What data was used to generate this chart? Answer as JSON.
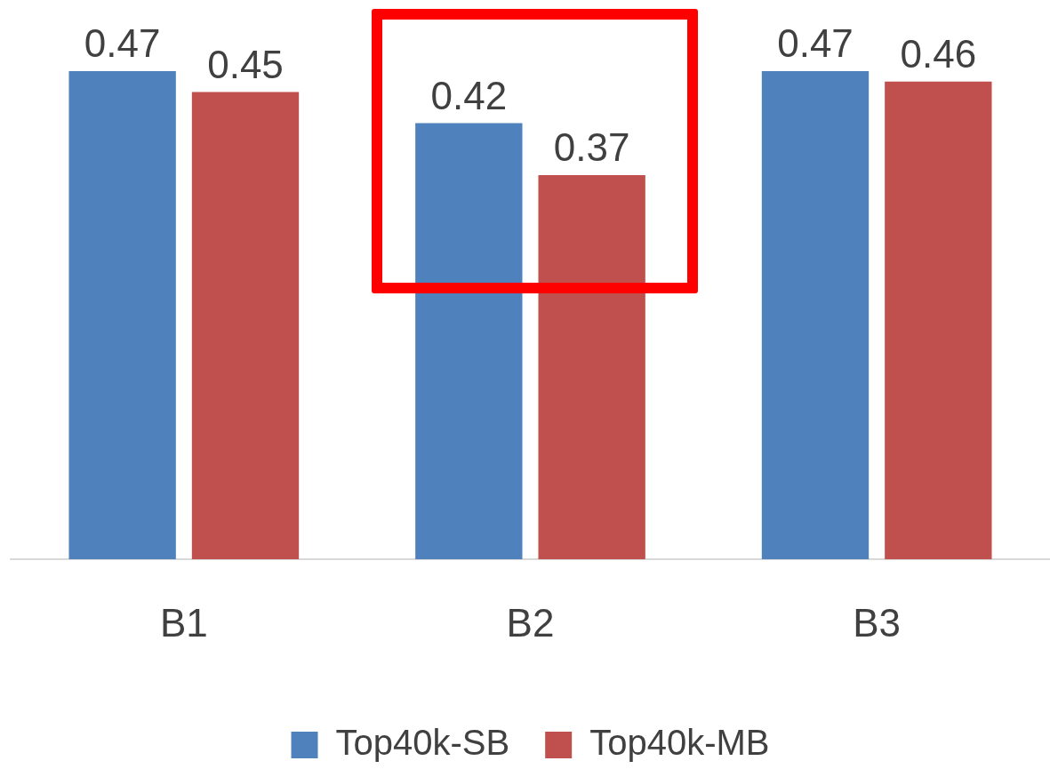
{
  "chart_data": {
    "type": "bar",
    "categories": [
      "B1",
      "B2",
      "B3"
    ],
    "series": [
      {
        "name": "Top40k-SB",
        "color": "#4f81bd",
        "values": [
          0.47,
          0.42,
          0.47
        ]
      },
      {
        "name": "Top40k-MB",
        "color": "#c0504d",
        "values": [
          0.45,
          0.37,
          0.46
        ]
      }
    ],
    "data_labels": true,
    "grid": false,
    "legend": "bottom",
    "tick_labels": "x"
  }
}
